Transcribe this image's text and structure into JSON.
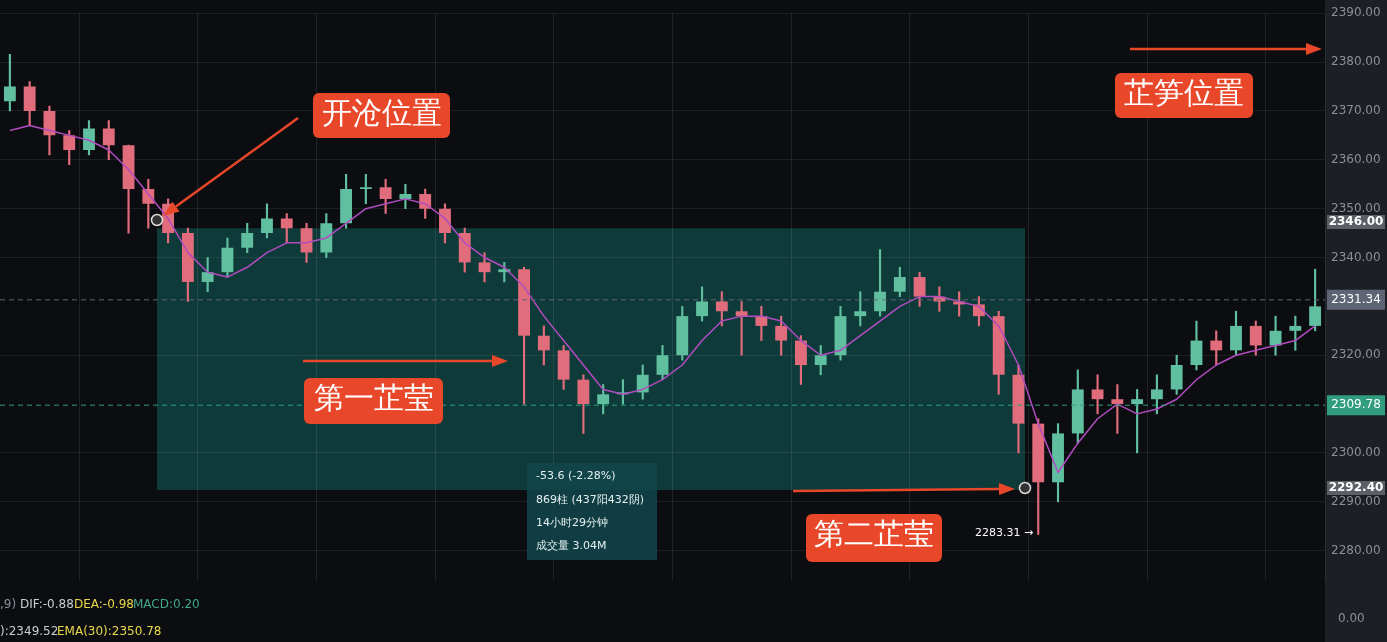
{
  "chart_data": {
    "type": "candlestick",
    "categories": [
      null,
      null,
      null,
      null,
      null,
      null,
      null,
      null,
      null,
      null,
      null,
      null,
      null,
      null,
      null,
      null,
      null,
      null,
      null,
      null,
      null,
      null,
      null,
      null,
      null,
      null,
      null,
      null,
      null,
      null,
      null,
      null,
      null,
      null,
      null,
      null,
      null,
      null,
      null,
      null,
      null,
      null,
      null,
      null,
      null,
      null,
      null,
      null,
      null,
      null,
      null,
      null,
      null,
      null,
      null,
      null,
      null,
      null,
      null,
      null,
      null,
      null,
      null,
      null,
      null,
      null,
      null
    ],
    "ohlc": [
      [
        2372,
        2381.6,
        2370,
        2375
      ],
      [
        2375,
        2376,
        2367,
        2370
      ],
      [
        2370,
        2371,
        2361,
        2365
      ],
      [
        2365,
        2366,
        2359,
        2362
      ],
      [
        2362,
        2368,
        2361,
        2366.4
      ],
      [
        2366.4,
        2368,
        2360,
        2363
      ],
      [
        2363,
        2363,
        2345,
        2354
      ],
      [
        2354,
        2356,
        2346,
        2351
      ],
      [
        2351,
        2352,
        2343,
        2345
      ],
      [
        2345,
        2346,
        2331,
        2335
      ],
      [
        2335,
        2340,
        2333,
        2337
      ],
      [
        2337,
        2344,
        2336,
        2342
      ],
      [
        2342,
        2347,
        2341,
        2345
      ],
      [
        2345,
        2351,
        2344,
        2348
      ],
      [
        2348,
        2349,
        2343,
        2346
      ],
      [
        2346,
        2347,
        2339,
        2341
      ],
      [
        2341,
        2349,
        2340,
        2347
      ],
      [
        2347,
        2357,
        2346,
        2354
      ],
      [
        2354,
        2357,
        2351,
        2354.4
      ],
      [
        2354.4,
        2356,
        2349,
        2352
      ],
      [
        2352,
        2355,
        2350,
        2353
      ],
      [
        2353,
        2354,
        2348,
        2350
      ],
      [
        2350,
        2351,
        2343,
        2345
      ],
      [
        2345,
        2346,
        2337,
        2339
      ],
      [
        2339,
        2341,
        2335,
        2337
      ],
      [
        2337,
        2339,
        2335,
        2337.6
      ],
      [
        2337.6,
        2338,
        2310,
        2324
      ],
      [
        2324,
        2326,
        2318,
        2321
      ],
      [
        2321,
        2322,
        2313,
        2315
      ],
      [
        2315,
        2316,
        2304,
        2310
      ],
      [
        2310,
        2314,
        2308,
        2312
      ],
      [
        2312,
        2315,
        2310,
        2312.4
      ],
      [
        2312.4,
        2318,
        2311,
        2316
      ],
      [
        2316,
        2322,
        2315,
        2320
      ],
      [
        2320,
        2330,
        2319,
        2328
      ],
      [
        2328,
        2334,
        2327,
        2331
      ],
      [
        2331,
        2333,
        2326,
        2329
      ],
      [
        2329,
        2331,
        2320,
        2328
      ],
      [
        2328,
        2330,
        2323,
        2326
      ],
      [
        2326,
        2328,
        2320,
        2323
      ],
      [
        2323,
        2324,
        2314,
        2318
      ],
      [
        2318,
        2322,
        2316,
        2320
      ],
      [
        2320,
        2330,
        2319,
        2328
      ],
      [
        2328,
        2333,
        2326,
        2329
      ],
      [
        2329,
        2341.6,
        2328,
        2333
      ],
      [
        2333,
        2338,
        2332,
        2336
      ],
      [
        2336,
        2337,
        2330,
        2332
      ],
      [
        2332,
        2334,
        2329,
        2331
      ],
      [
        2331,
        2333,
        2328,
        2330.4
      ],
      [
        2330.4,
        2332,
        2326,
        2328
      ],
      [
        2328,
        2329,
        2312,
        2316
      ],
      [
        2316,
        2318,
        2300,
        2306
      ],
      [
        2306,
        2307,
        2283.31,
        2294
      ],
      [
        2294,
        2306,
        2290,
        2304
      ],
      [
        2304,
        2317,
        2302,
        2313
      ],
      [
        2313,
        2316,
        2308,
        2311
      ],
      [
        2311,
        2314,
        2304,
        2310
      ],
      [
        2310,
        2313,
        2300,
        2311
      ],
      [
        2311,
        2316,
        2308,
        2313
      ],
      [
        2313,
        2320,
        2312,
        2318
      ],
      [
        2318,
        2327,
        2317,
        2323
      ],
      [
        2323,
        2325,
        2318,
        2321
      ],
      [
        2321,
        2329,
        2320,
        2326
      ],
      [
        2326,
        2327,
        2320,
        2322
      ],
      [
        2322,
        2328,
        2320,
        2325
      ],
      [
        2325,
        2328,
        2321,
        2326
      ],
      [
        2326,
        2337.6,
        2325,
        2330
      ]
    ],
    "colors": [
      "#5fbf9f",
      "#e06c7c",
      "#e06c7c",
      "#e06c7c",
      "#5fbf9f",
      "#e06c7c",
      "#e06c7c",
      "#e06c7c",
      "#e06c7c",
      "#e06c7c",
      "#5fbf9f",
      "#5fbf9f",
      "#5fbf9f",
      "#5fbf9f",
      "#e06c7c",
      "#e06c7c",
      "#5fbf9f",
      "#5fbf9f",
      "#5fbf9f",
      "#e06c7c",
      "#5fbf9f",
      "#e06c7c",
      "#e06c7c",
      "#e06c7c",
      "#e06c7c",
      "#5fbf9f",
      "#e06c7c",
      "#e06c7c",
      "#e06c7c",
      "#e06c7c",
      "#5fbf9f",
      "#5fbf9f",
      "#5fbf9f",
      "#5fbf9f",
      "#5fbf9f",
      "#5fbf9f",
      "#e06c7c",
      "#e06c7c",
      "#e06c7c",
      "#e06c7c",
      "#e06c7c",
      "#5fbf9f",
      "#5fbf9f",
      "#5fbf9f",
      "#5fbf9f",
      "#5fbf9f",
      "#e06c7c",
      "#e06c7c",
      "#e06c7c",
      "#e06c7c",
      "#e06c7c",
      "#e06c7c",
      "#e06c7c",
      "#5fbf9f",
      "#5fbf9f",
      "#e06c7c",
      "#e06c7c",
      "#5fbf9f",
      "#5fbf9f",
      "#5fbf9f",
      "#5fbf9f",
      "#e06c7c",
      "#5fbf9f",
      "#e06c7c",
      "#5fbf9f",
      "#5fbf9f",
      "#5fbf9f"
    ],
    "series": [
      {
        "type": "line",
        "color": "#b04cc0",
        "values": [
          2366,
          2367,
          2366,
          2365,
          2364,
          2362,
          2358,
          2353,
          2348,
          2341,
          2337,
          2336,
          2338,
          2341,
          2343,
          2343,
          2344,
          2347,
          2350,
          2351,
          2352,
          2351,
          2348,
          2343,
          2340,
          2338,
          2334,
          2328,
          2323,
          2318,
          2313,
          2312,
          2313,
          2315,
          2318,
          2323,
          2327,
          2328,
          2328,
          2327,
          2323,
          2320,
          2321,
          2324,
          2327,
          2330,
          2332,
          2332,
          2331,
          2330,
          2326,
          2318,
          2306,
          2296,
          2302,
          2307,
          2310,
          2308,
          2309,
          2311,
          2315,
          2318,
          2320,
          2321,
          2322,
          2323,
          2326
        ]
      }
    ],
    "ylim": [
      2274,
      2390
    ],
    "yticks": [
      {
        "value": 2280,
        "label": "2280.00"
      },
      {
        "value": 2290,
        "label": "2290.00"
      },
      {
        "value": 2300,
        "label": "2300.00"
      },
      {
        "value": 2320,
        "label": "2320.00"
      },
      {
        "value": 2340,
        "label": "2340.00"
      },
      {
        "value": 2350,
        "label": "2350.00"
      },
      {
        "value": 2360,
        "label": "2360.00"
      },
      {
        "value": 2370,
        "label": "2370.00"
      },
      {
        "value": 2380,
        "label": "2380.00"
      },
      {
        "value": 2390,
        "label": "2390.00"
      }
    ],
    "grid": true,
    "legend": false,
    "tick_labels": "y",
    "bands": [
      {
        "axis": "y",
        "from": 2292.4,
        "to": 2346,
        "color": "#0f3a3a"
      }
    ],
    "ref_lines": [
      {
        "axis": "y",
        "value": 2331.34,
        "label": "2331.34",
        "color": "#5d6473",
        "line_style": "dashed"
      },
      {
        "axis": "y",
        "value": 2309.78,
        "label": "2309.78",
        "color": "#2f9d7e",
        "line_style": "dashed"
      }
    ],
    "annotations": [
      "开沧位置",
      "第一芷莹",
      "第二芷莹",
      "芷笋位置",
      "2346.00",
      "2292.40",
      "2283.31 →",
      "-53.6 (-2.28%)",
      "869柱 (437阳432阴)",
      "14小时29分钟",
      "成交量 3.04M",
      "0.00",
      ",9)",
      "DIF:-0.88",
      "DEA:-0.98",
      "MACD:0.20",
      "):2349.52",
      "EMA(30):2350.78"
    ]
  }
}
